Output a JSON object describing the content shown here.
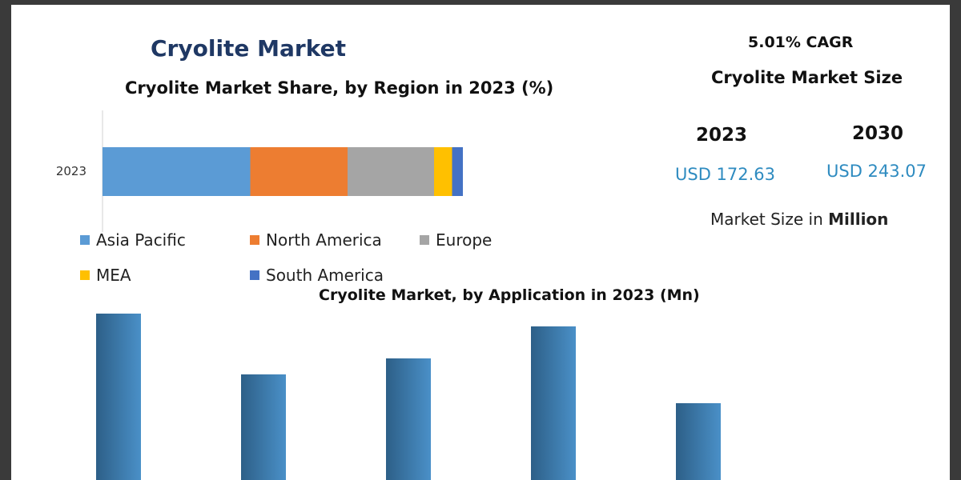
{
  "header": {
    "title": "Cryolite Market"
  },
  "stats": {
    "cagr": "5.01% CAGR",
    "size_title": "Cryolite Market Size",
    "year_start": "2023",
    "year_end": "2030",
    "value_start": "USD 172.63",
    "value_end": "USD 243.07",
    "unit_prefix": "Market Size in ",
    "unit_bold": "Million"
  },
  "colors": {
    "asia_pacific": "#5b9bd5",
    "north_america": "#ed7d31",
    "europe": "#a5a5a5",
    "mea": "#ffc000",
    "south_america": "#4472c4",
    "bar_dark": "#2d5f87",
    "bar_light": "#4a90c8",
    "title_blue": "#1f3864",
    "value_blue": "#2e8bc0"
  },
  "chart_data": [
    {
      "type": "bar",
      "orientation": "horizontal",
      "stacked": true,
      "title": "Cryolite Market Share, by Region in 2023 (%)",
      "categories": [
        "2023"
      ],
      "series": [
        {
          "name": "Asia Pacific",
          "values": [
            41
          ]
        },
        {
          "name": "North America",
          "values": [
            27
          ]
        },
        {
          "name": "Europe",
          "values": [
            24
          ]
        },
        {
          "name": "MEA",
          "values": [
            5
          ]
        },
        {
          "name": "South America",
          "values": [
            3
          ]
        }
      ],
      "xlim": [
        0,
        100
      ],
      "legend": "bottom",
      "grid": false
    },
    {
      "type": "bar",
      "title": "Cryolite Market, by Application in 2023 (Mn)",
      "categories": [
        "",
        "",
        "",
        "",
        "",
        ""
      ],
      "values": [
        52,
        33,
        38,
        48,
        24,
        0
      ],
      "grid": false,
      "legend": "none"
    }
  ]
}
